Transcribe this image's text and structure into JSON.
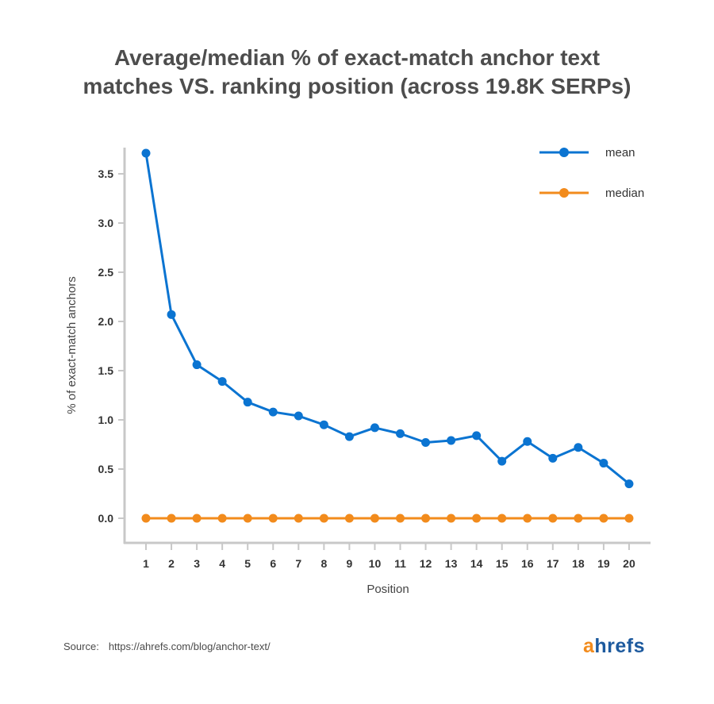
{
  "title": {
    "line1": "Average/median % of exact-match anchor text",
    "line2": "matches VS. ranking position (across 19.8K SERPs)"
  },
  "chart_data": {
    "type": "line",
    "x": [
      1,
      2,
      3,
      4,
      5,
      6,
      7,
      8,
      9,
      10,
      11,
      12,
      13,
      14,
      15,
      16,
      17,
      18,
      19,
      20
    ],
    "series": [
      {
        "name": "mean",
        "color": "#0b74d1",
        "values": [
          3.71,
          2.07,
          1.56,
          1.39,
          1.18,
          1.08,
          1.04,
          0.95,
          0.83,
          0.92,
          0.86,
          0.77,
          0.79,
          0.84,
          0.58,
          0.78,
          0.61,
          0.72,
          0.56,
          0.35
        ]
      },
      {
        "name": "median",
        "color": "#f28b1c",
        "values": [
          0,
          0,
          0,
          0,
          0,
          0,
          0,
          0,
          0,
          0,
          0,
          0,
          0,
          0,
          0,
          0,
          0,
          0,
          0,
          0
        ]
      }
    ],
    "xlabel": "Position",
    "ylabel": "% of exact-match anchors",
    "yticks": [
      "0.0",
      "0.5",
      "1.0",
      "1.5",
      "2.0",
      "2.5",
      "3.0",
      "3.5"
    ],
    "ylim": [
      -0.25,
      3.75
    ],
    "legend_position": "top-right",
    "grid": false
  },
  "source": {
    "label": "Source:",
    "url": "https://ahrefs.com/blog/anchor-text/"
  },
  "logo": {
    "first": "a",
    "rest": "hrefs"
  }
}
